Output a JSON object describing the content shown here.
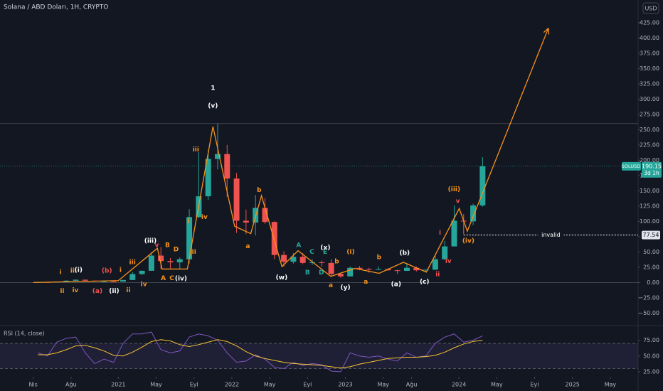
{
  "chart_data": [
    {
      "type": "candlestick",
      "title": "Solana / ABD Doları, 1H, CRYPTO",
      "currency": "USD",
      "symbol": "SOLUSD",
      "countdown": "3d 1h",
      "x": [
        "2020-04",
        "2020-05",
        "2020-06",
        "2020-07",
        "2020-08",
        "2020-09",
        "2020-10",
        "2020-11",
        "2020-12",
        "2021-01",
        "2021-02",
        "2021-03",
        "2021-04",
        "2021-05",
        "2021-06",
        "2021-07",
        "2021-08",
        "2021-09",
        "2021-10",
        "2021-11",
        "2021-12",
        "2022-01",
        "2022-02",
        "2022-03",
        "2022-04",
        "2022-05",
        "2022-06",
        "2022-07",
        "2022-08",
        "2022-09",
        "2022-10",
        "2022-11",
        "2022-12",
        "2023-01",
        "2023-02",
        "2023-03",
        "2023-04",
        "2023-05",
        "2023-06",
        "2023-07",
        "2023-08",
        "2023-09",
        "2023-10",
        "2023-11",
        "2023-12",
        "2024-01",
        "2024-02",
        "2024-03"
      ],
      "open": [
        0.6,
        0.7,
        0.6,
        1.4,
        2.9,
        4.5,
        3.0,
        1.6,
        1.9,
        1.5,
        4.1,
        13.8,
        19.2,
        44,
        35,
        33,
        38,
        107,
        141,
        202,
        210,
        170,
        101,
        98,
        122,
        99,
        45,
        34,
        42,
        32,
        33,
        32,
        14,
        10,
        24,
        22,
        21,
        22,
        20,
        19,
        24,
        20,
        21,
        38,
        59,
        101,
        100,
        126
      ],
      "high": [
        0.9,
        0.8,
        1.6,
        3.5,
        5.0,
        4.8,
        3.2,
        2.4,
        2.2,
        4.5,
        17.5,
        19.5,
        49,
        58,
        40,
        41,
        120,
        213,
        217,
        260,
        225,
        179,
        119,
        143,
        138,
        100,
        51,
        48,
        48,
        38,
        36,
        38,
        15,
        26,
        27,
        24,
        26,
        23,
        21,
        32,
        26,
        21,
        46,
        68,
        126,
        112,
        129,
        205
      ],
      "low": [
        0.5,
        0.5,
        0.5,
        1.2,
        2.7,
        2.2,
        1.4,
        1.3,
        1.4,
        1.5,
        4.0,
        12.2,
        19,
        22,
        23,
        22,
        31,
        105,
        135,
        185,
        140,
        81,
        79,
        77,
        96,
        38,
        26,
        31,
        30,
        29,
        26,
        11,
        8,
        10,
        20,
        16,
        20,
        19,
        14,
        19,
        18,
        17,
        20,
        37,
        59,
        79,
        94,
        124
      ],
      "close": [
        0.7,
        0.6,
        1.4,
        2.9,
        4.5,
        3.0,
        1.6,
        1.9,
        1.5,
        4.1,
        13.8,
        19.2,
        44,
        35,
        33,
        38,
        107,
        141,
        202,
        210,
        170,
        101,
        98,
        122,
        99,
        45,
        34,
        42,
        32,
        33,
        32,
        14,
        10,
        24,
        22,
        21,
        22,
        20,
        19,
        24,
        20,
        21,
        38,
        59,
        101,
        100,
        126,
        190.15
      ],
      "up_color": "#26a69a",
      "down_color": "#ef5350",
      "xlim": [
        "2019-12-16",
        "2025-07-25"
      ],
      "xticks": [
        {
          "value": "2020-04",
          "label": "Nis"
        },
        {
          "value": "2020-08",
          "label": "Ağu"
        },
        {
          "value": "2021-01",
          "label": "2021"
        },
        {
          "value": "2021-05",
          "label": "May"
        },
        {
          "value": "2021-09",
          "label": "Eyl"
        },
        {
          "value": "2022-01",
          "label": "2022"
        },
        {
          "value": "2022-05",
          "label": "May"
        },
        {
          "value": "2022-09",
          "label": "Eyl"
        },
        {
          "value": "2023-01",
          "label": "2023"
        },
        {
          "value": "2023-05",
          "label": "May"
        },
        {
          "value": "2023-08",
          "label": "Ağu"
        },
        {
          "value": "2024-01",
          "label": "2024"
        },
        {
          "value": "2024-05",
          "label": "May"
        },
        {
          "value": "2024-09",
          "label": "Eyl"
        },
        {
          "value": "2025-01",
          "label": "2025"
        },
        {
          "value": "2025-05",
          "label": "May"
        }
      ],
      "ylim": [
        -67,
        462
      ],
      "yticks": [
        {
          "value": -50,
          "label": "−50.00"
        },
        {
          "value": -25,
          "label": "−25.00"
        },
        {
          "value": 0,
          "label": "0.00"
        },
        {
          "value": 25,
          "label": "25.00"
        },
        {
          "value": 50,
          "label": "50.00"
        },
        {
          "value": 75,
          "label": "75.00"
        },
        {
          "value": 100,
          "label": "100.00"
        },
        {
          "value": 125,
          "label": "125.00"
        },
        {
          "value": 150,
          "label": "150.00"
        },
        {
          "value": 175,
          "label": "175.00"
        },
        {
          "value": 200,
          "label": "200.00"
        },
        {
          "value": 225,
          "label": "225.00"
        },
        {
          "value": 250,
          "label": "250.00"
        },
        {
          "value": 275,
          "label": "275.00"
        },
        {
          "value": 300,
          "label": "300.00"
        },
        {
          "value": 325,
          "label": "325.00"
        },
        {
          "value": 350,
          "label": "350.00"
        },
        {
          "value": 375,
          "label": "375.00"
        },
        {
          "value": 400,
          "label": "400.00"
        },
        {
          "value": 425,
          "label": "425.00"
        }
      ],
      "reference_lines": [
        260,
        0
      ],
      "invalid_level": {
        "value": 77.54,
        "label": "invalid"
      },
      "wave": {
        "color": "#f7931a",
        "x": [
          "2020-04-01",
          "2021-01-01",
          "2021-05-05",
          "2021-05-20",
          "2021-08-10",
          "2021-11-01",
          "2022-01-10",
          "2022-03-01",
          "2022-04-05",
          "2022-06-10",
          "2022-08-01",
          "2022-11-15",
          "2023-02-01",
          "2023-04-18",
          "2023-07-05",
          "2023-09-18",
          "2024-01-02",
          "2024-01-28",
          "2024-10-15"
        ],
        "y": [
          0,
          3,
          56,
          22,
          22,
          255,
          92,
          80,
          142,
          26,
          52,
          10,
          23,
          15,
          33,
          17,
          121,
          84,
          416
        ]
      },
      "annotations": [
        {
          "text": "1",
          "x": "2021-11-01",
          "y": 318,
          "color": "#ffffff"
        },
        {
          "text": "(v)",
          "x": "2021-11-01",
          "y": 289,
          "color": "#ffffff"
        },
        {
          "text": "i",
          "x": "2020-06-28",
          "y": 17,
          "color": "#f7931a"
        },
        {
          "text": "ii",
          "x": "2020-07-03",
          "y": -14,
          "color": "#f7931a"
        },
        {
          "text": "iii",
          "x": "2020-08-09",
          "y": 19,
          "color": "#f7931a"
        },
        {
          "text": "(i)",
          "x": "2020-08-25",
          "y": 20,
          "color": "#ffffff"
        },
        {
          "text": "iv",
          "x": "2020-08-15",
          "y": -13,
          "color": "#f7931a"
        },
        {
          "text": "(a)",
          "x": "2020-10-25",
          "y": -14,
          "color": "#ef5350"
        },
        {
          "text": "(b)",
          "x": "2020-11-25",
          "y": 19,
          "color": "#ef5350"
        },
        {
          "text": "(ii)",
          "x": "2020-12-18",
          "y": -14,
          "color": "#ffffff"
        },
        {
          "text": "i",
          "x": "2021-01-08",
          "y": 20,
          "color": "#f7931a"
        },
        {
          "text": "ii",
          "x": "2021-02-03",
          "y": -13,
          "color": "#f7931a"
        },
        {
          "text": "iii",
          "x": "2021-02-16",
          "y": 33,
          "color": "#f7931a"
        },
        {
          "text": "iv",
          "x": "2021-03-22",
          "y": -3,
          "color": "#f7931a"
        },
        {
          "text": "(iii)",
          "x": "2021-04-13",
          "y": 68,
          "color": "#ffffff"
        },
        {
          "text": "v",
          "x": "2021-05-03",
          "y": 61,
          "color": "#ef5350"
        },
        {
          "text": "B",
          "x": "2021-06-07",
          "y": 61,
          "color": "#f7931a"
        },
        {
          "text": "D",
          "x": "2021-07-04",
          "y": 54,
          "color": "#f7931a"
        },
        {
          "text": "A",
          "x": "2021-05-24",
          "y": 7,
          "color": "#f7931a"
        },
        {
          "text": "C",
          "x": "2021-06-21",
          "y": 7,
          "color": "#f7931a"
        },
        {
          "text": "(iv)",
          "x": "2021-07-20",
          "y": 6,
          "color": "#ffffff"
        },
        {
          "text": "i",
          "x": "2021-08-13",
          "y": 100,
          "color": "#f7931a"
        },
        {
          "text": "ii",
          "x": "2021-09-01",
          "y": 50,
          "color": "#f7931a"
        },
        {
          "text": "iii",
          "x": "2021-09-07",
          "y": 217,
          "color": "#f7931a"
        },
        {
          "text": "iv",
          "x": "2021-10-04",
          "y": 107,
          "color": "#f7931a"
        },
        {
          "text": "a",
          "x": "2022-02-22",
          "y": 59,
          "color": "#f7931a"
        },
        {
          "text": "b",
          "x": "2022-03-28",
          "y": 151,
          "color": "#f7931a"
        },
        {
          "text": "(w)",
          "x": "2022-06-09",
          "y": 8,
          "color": "#ffffff"
        },
        {
          "text": "A",
          "x": "2022-08-03",
          "y": 61,
          "color": "#26a69a"
        },
        {
          "text": "B",
          "x": "2022-09-01",
          "y": 16,
          "color": "#26a69a"
        },
        {
          "text": "C",
          "x": "2022-09-15",
          "y": 50,
          "color": "#26a69a"
        },
        {
          "text": "D",
          "x": "2022-10-15",
          "y": 16,
          "color": "#26a69a"
        },
        {
          "text": "E",
          "x": "2022-10-27",
          "y": 50,
          "color": "#26a69a"
        },
        {
          "text": "(x)",
          "x": "2022-10-28",
          "y": 57,
          "color": "#ffffff"
        },
        {
          "text": "a",
          "x": "2022-11-15",
          "y": -5,
          "color": "#f7931a"
        },
        {
          "text": "b",
          "x": "2022-12-04",
          "y": 34,
          "color": "#f7931a"
        },
        {
          "text": "(y)",
          "x": "2023-01-01",
          "y": -8,
          "color": "#ffffff"
        },
        {
          "text": "(i)",
          "x": "2023-01-18",
          "y": 50,
          "color": "#f7931a"
        },
        {
          "text": "a",
          "x": "2023-03-06",
          "y": 1,
          "color": "#f7931a"
        },
        {
          "text": "b",
          "x": "2023-04-18",
          "y": 41,
          "color": "#f7931a"
        },
        {
          "text": "(a)",
          "x": "2023-06-12",
          "y": -3,
          "color": "#ffffff"
        },
        {
          "text": "(b)",
          "x": "2023-07-09",
          "y": 48,
          "color": "#ffffff"
        },
        {
          "text": "(c)",
          "x": "2023-09-12",
          "y": 1,
          "color": "#ffffff"
        },
        {
          "text": "ii",
          "x": "2023-10-24",
          "y": 13,
          "color": "#ef5350"
        },
        {
          "text": "i",
          "x": "2023-11-01",
          "y": 81,
          "color": "#ef5350"
        },
        {
          "text": "iv",
          "x": "2023-11-28",
          "y": 35,
          "color": "#ef5350"
        },
        {
          "text": "(iii)",
          "x": "2023-12-16",
          "y": 152,
          "color": "#f7931a"
        },
        {
          "text": "v",
          "x": "2023-12-28",
          "y": 133,
          "color": "#ef5350"
        },
        {
          "text": "(iv)",
          "x": "2024-02-01",
          "y": 68,
          "color": "#f7931a"
        }
      ]
    },
    {
      "type": "line",
      "title": "RSI (14, close)",
      "color": "#7e57c2",
      "ma_color": "#f7c531",
      "values": [
        55,
        50,
        72,
        78,
        80,
        55,
        38,
        45,
        40,
        70,
        85,
        85,
        88,
        60,
        55,
        58,
        80,
        85,
        82,
        75,
        55,
        40,
        42,
        52,
        45,
        32,
        30,
        40,
        35,
        38,
        36,
        26,
        25,
        55,
        50,
        48,
        50,
        45,
        42,
        55,
        48,
        50,
        70,
        80,
        85,
        72,
        75,
        82
      ],
      "ma": [
        52,
        52,
        55,
        60,
        66,
        67,
        63,
        58,
        51,
        50,
        56,
        64,
        73,
        76,
        74,
        68,
        65,
        68,
        72,
        76,
        73,
        66,
        57,
        50,
        46,
        43,
        40,
        38,
        37,
        36,
        35,
        33,
        31,
        33,
        37,
        40,
        43,
        46,
        47,
        48,
        48,
        49,
        51,
        56,
        63,
        69,
        73,
        75
      ],
      "bands": [
        30,
        70
      ],
      "ylim": [
        17,
        96
      ],
      "yticks": [
        {
          "value": 25,
          "label": "25.00"
        },
        {
          "value": 50,
          "label": "50.00"
        },
        {
          "value": 75,
          "label": "75.00"
        }
      ]
    }
  ]
}
